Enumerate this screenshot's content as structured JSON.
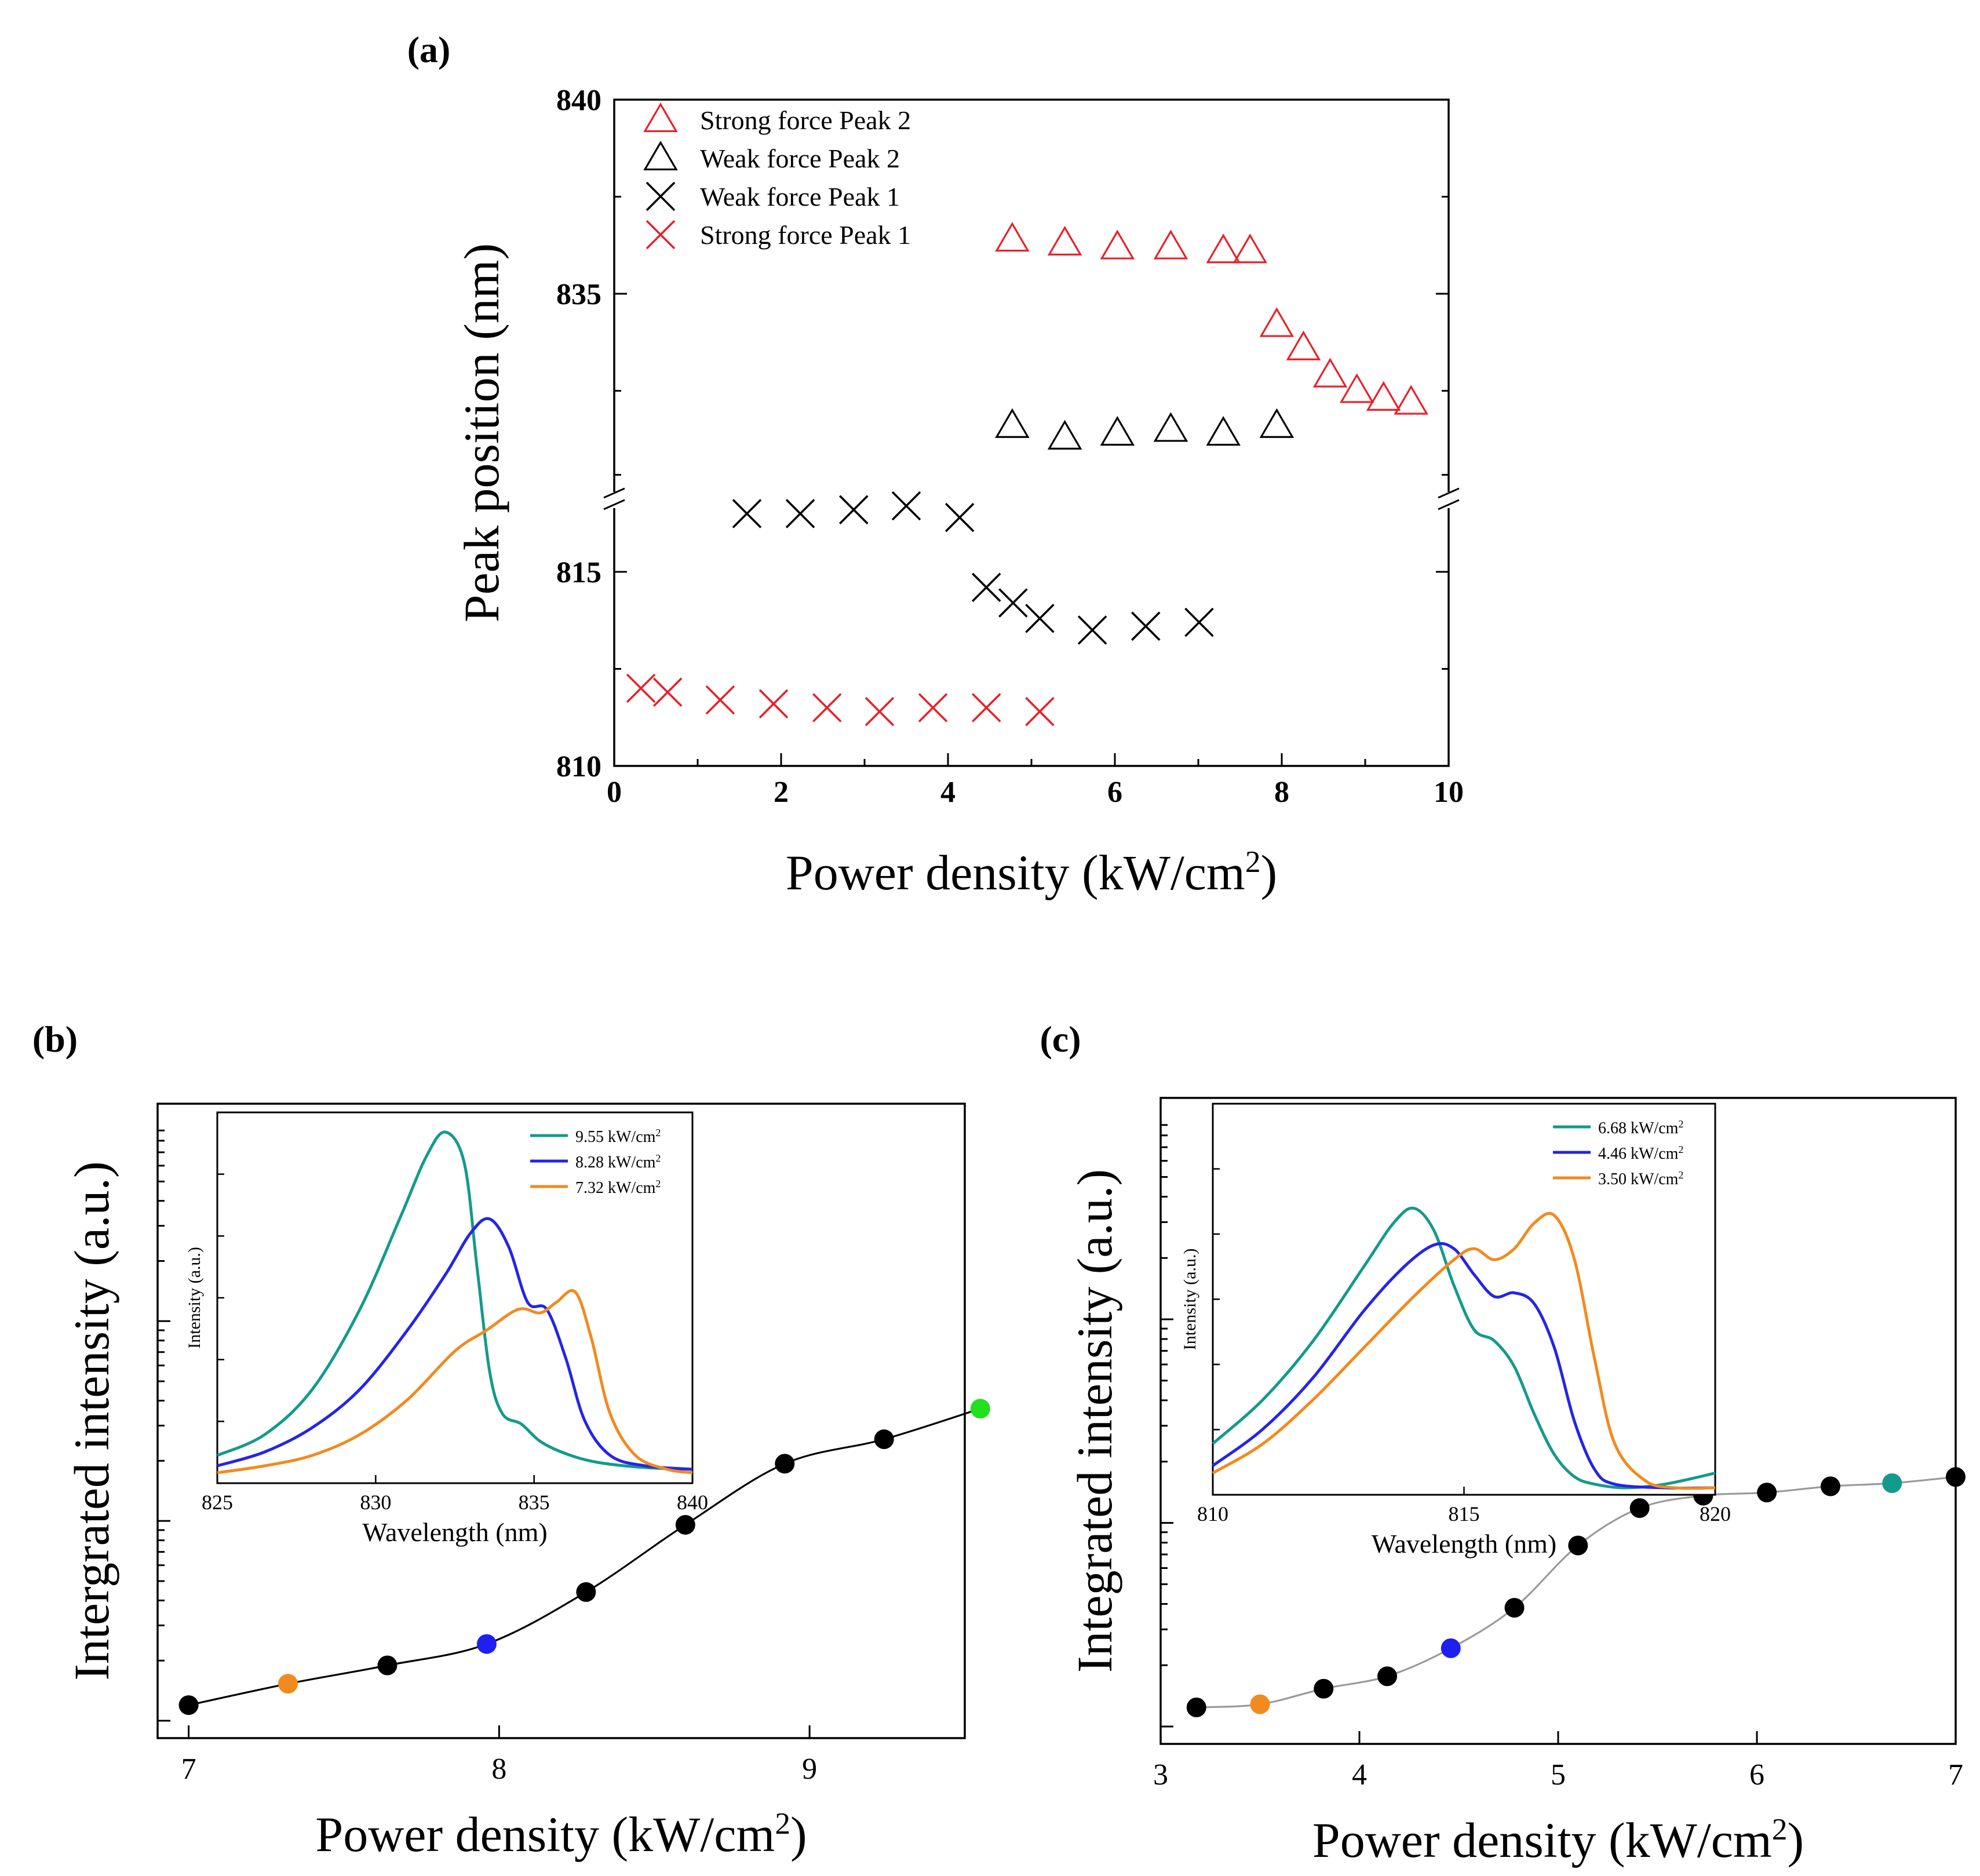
{
  "panels": {
    "a": {
      "label": "(a)"
    },
    "b": {
      "label": "(b)"
    },
    "c": {
      "label": "(c)"
    }
  },
  "chart_data": [
    {
      "id": "a",
      "type": "scatter",
      "title": "",
      "xlabel": "Power density (kW/cm",
      "xlabel_sup": "2",
      "xlabel_end": ")",
      "ylabel": "Peak position (nm)",
      "xlim": [
        0,
        10
      ],
      "x_ticks": [
        "0",
        "2",
        "4",
        "6",
        "8",
        "10"
      ],
      "y_ticks": [
        "810",
        "815",
        "835",
        "840"
      ],
      "y_axis_break": "between 818 and 832 nm",
      "legend_position": "top-left",
      "series": [
        {
          "name": "Strong force Peak 2",
          "marker": "triangle",
          "color": "#e8202a",
          "x": [
            4.77,
            5.4,
            6.03,
            6.67,
            7.3,
            7.62,
            7.94,
            8.26,
            8.58,
            8.9,
            9.22,
            9.55
          ],
          "y": [
            836.4,
            836.3,
            836.2,
            836.2,
            836.1,
            836.1,
            834.2,
            833.6,
            832.9,
            832.5,
            832.3,
            832.2
          ]
        },
        {
          "name": "Weak force Peak 2",
          "marker": "triangle",
          "color": "#000000",
          "x": [
            4.77,
            5.4,
            6.03,
            6.67,
            7.3,
            7.94
          ],
          "y": [
            831.6,
            831.3,
            831.4,
            831.5,
            831.4,
            831.6
          ]
        },
        {
          "name": "Weak force Peak 1",
          "marker": "x",
          "color": "#000000",
          "x": [
            1.59,
            2.23,
            2.87,
            3.5,
            4.14,
            4.46,
            4.78,
            5.1,
            5.73,
            6.37,
            7.01
          ],
          "y": [
            816.5,
            816.5,
            816.6,
            816.7,
            816.4,
            814.6,
            814.2,
            813.8,
            813.5,
            813.6,
            813.7
          ]
        },
        {
          "name": "Strong force Peak 1",
          "marker": "x",
          "color": "#e8202a",
          "x": [
            0.32,
            0.64,
            1.27,
            1.91,
            2.55,
            3.18,
            3.82,
            4.46,
            5.1
          ],
          "y": [
            812.0,
            811.9,
            811.7,
            811.6,
            811.5,
            811.4,
            811.5,
            811.5,
            811.4
          ]
        }
      ]
    },
    {
      "id": "b",
      "type": "line",
      "xlabel": "Power density (kW/cm",
      "xlabel_sup": "2",
      "xlabel_end": ")",
      "ylabel": "Intergrated intensity (a.u.)",
      "xlim": [
        6.9,
        9.5
      ],
      "x_ticks": [
        7,
        8,
        9
      ],
      "ylim": [
        0,
        1
      ],
      "y_log_scale": true,
      "series": [
        {
          "name": "Integrated intensity",
          "x": [
            7.0,
            7.32,
            7.64,
            7.96,
            8.28,
            8.6,
            8.92,
            9.24,
            9.55
          ],
          "y": [
            0.035,
            0.07,
            0.1,
            0.135,
            0.22,
            0.33,
            0.43,
            0.47,
            0.52
          ],
          "point_colors": [
            "#000000",
            "#f28a1e",
            "#000000",
            "#1f1ff0",
            "#000000",
            "#000000",
            "#000000",
            "#000000",
            "#22e01e"
          ]
        }
      ],
      "inset": {
        "xlabel": "Wavelength (nm)",
        "ylabel": "Intensity (a.u.)",
        "xlim": [
          825,
          840
        ],
        "x_ticks": [
          825,
          830,
          835,
          840
        ],
        "ylim": [
          0,
          1
        ],
        "legend_position": "top-right",
        "series": [
          {
            "name": "9.55 kW/cm",
            "sup": "2",
            "color": "#139a8c",
            "x": [
              825,
              826.5,
              828,
              829.5,
              830.8,
              831.6,
              832.2,
              832.8,
              833.2,
              833.6,
              834.0,
              834.6,
              835.2,
              836.0,
              837.0,
              838.5,
              840
            ],
            "y": [
              0.06,
              0.12,
              0.25,
              0.48,
              0.75,
              0.92,
              0.99,
              0.9,
              0.6,
              0.3,
              0.18,
              0.15,
              0.1,
              0.065,
              0.04,
              0.025,
              0.02
            ]
          },
          {
            "name": "8.28 kW/cm",
            "sup": "2",
            "color": "#2424e8",
            "x": [
              825,
              826.5,
              828,
              829.5,
              831,
              832.2,
              833.0,
              833.6,
              834.2,
              834.8,
              835.4,
              836.0,
              836.6,
              837.4,
              838.5,
              840
            ],
            "y": [
              0.03,
              0.07,
              0.14,
              0.25,
              0.42,
              0.58,
              0.7,
              0.74,
              0.66,
              0.5,
              0.48,
              0.34,
              0.16,
              0.06,
              0.03,
              0.02
            ]
          },
          {
            "name": "7.32 kW/cm",
            "sup": "2",
            "color": "#f28a1e",
            "x": [
              825,
              826.5,
              828,
              829.5,
              831,
              832.5,
              833.5,
              834.5,
              835.2,
              835.7,
              836.3,
              836.8,
              837.4,
              838.2,
              839.2,
              840
            ],
            "y": [
              0.01,
              0.03,
              0.06,
              0.12,
              0.22,
              0.36,
              0.42,
              0.48,
              0.47,
              0.5,
              0.53,
              0.4,
              0.18,
              0.06,
              0.02,
              0.01
            ]
          }
        ]
      }
    },
    {
      "id": "c",
      "type": "line",
      "xlabel": "Power density (kW/cm",
      "xlabel_sup": "2",
      "xlabel_end": ")",
      "ylabel": "Integrated intensity (a.u.)",
      "xlim": [
        3,
        7
      ],
      "x_ticks": [
        3,
        4,
        5,
        6,
        7
      ],
      "ylim": [
        0,
        1
      ],
      "y_log_scale": true,
      "series": [
        {
          "name": "Integrated intensity",
          "x": [
            3.18,
            3.5,
            3.82,
            4.14,
            4.46,
            4.78,
            5.1,
            5.41,
            5.73,
            6.05,
            6.37,
            6.68,
            7.0
          ],
          "y": [
            0.04,
            0.045,
            0.07,
            0.09,
            0.135,
            0.2,
            0.3,
            0.36,
            0.38,
            0.385,
            0.395,
            0.4,
            0.41
          ],
          "point_colors": [
            "#000000",
            "#f28a1e",
            "#000000",
            "#000000",
            "#1f1ff0",
            "#000000",
            "#000000",
            "#000000",
            "#000000",
            "#000000",
            "#000000",
            "#139a8c",
            "#000000"
          ]
        }
      ],
      "inset": {
        "xlabel": "Wavelength (nm)",
        "ylabel": "Intensity (a.u.)",
        "xlim": [
          810,
          820
        ],
        "x_ticks": [
          810,
          815,
          820
        ],
        "ylim": [
          0,
          1
        ],
        "legend_position": "top-right",
        "series": [
          {
            "name": "6.68 kW/cm",
            "sup": "2",
            "color": "#139a8c",
            "x": [
              810,
              811,
              812,
              813,
              813.6,
              814.0,
              814.4,
              814.8,
              815.2,
              815.6,
              816.0,
              816.4,
              816.8,
              817.2,
              817.6,
              818.2,
              819,
              820
            ],
            "y": [
              0.12,
              0.24,
              0.4,
              0.6,
              0.72,
              0.76,
              0.7,
              0.55,
              0.43,
              0.4,
              0.33,
              0.2,
              0.09,
              0.03,
              0.01,
              0.0,
              0.01,
              0.04
            ]
          },
          {
            "name": "4.46 kW/cm",
            "sup": "2",
            "color": "#2424e8",
            "x": [
              810,
              811,
              812,
              813,
              813.8,
              814.4,
              814.8,
              815.2,
              815.6,
              816.0,
              816.4,
              816.8,
              817.2,
              817.6,
              818.0,
              819,
              820
            ],
            "y": [
              0.06,
              0.16,
              0.3,
              0.48,
              0.6,
              0.66,
              0.65,
              0.58,
              0.52,
              0.53,
              0.5,
              0.38,
              0.18,
              0.05,
              0.01,
              0.0,
              0.0
            ]
          },
          {
            "name": "3.50 kW/cm",
            "sup": "2",
            "color": "#f28a1e",
            "x": [
              810,
              811,
              812,
              813,
              814,
              814.8,
              815.2,
              815.6,
              816.0,
              816.4,
              816.8,
              817.2,
              817.6,
              818.0,
              818.6,
              819.2,
              820
            ],
            "y": [
              0.04,
              0.12,
              0.24,
              0.38,
              0.52,
              0.62,
              0.65,
              0.62,
              0.65,
              0.72,
              0.74,
              0.62,
              0.35,
              0.12,
              0.02,
              0.0,
              0.0
            ]
          }
        ]
      }
    }
  ]
}
